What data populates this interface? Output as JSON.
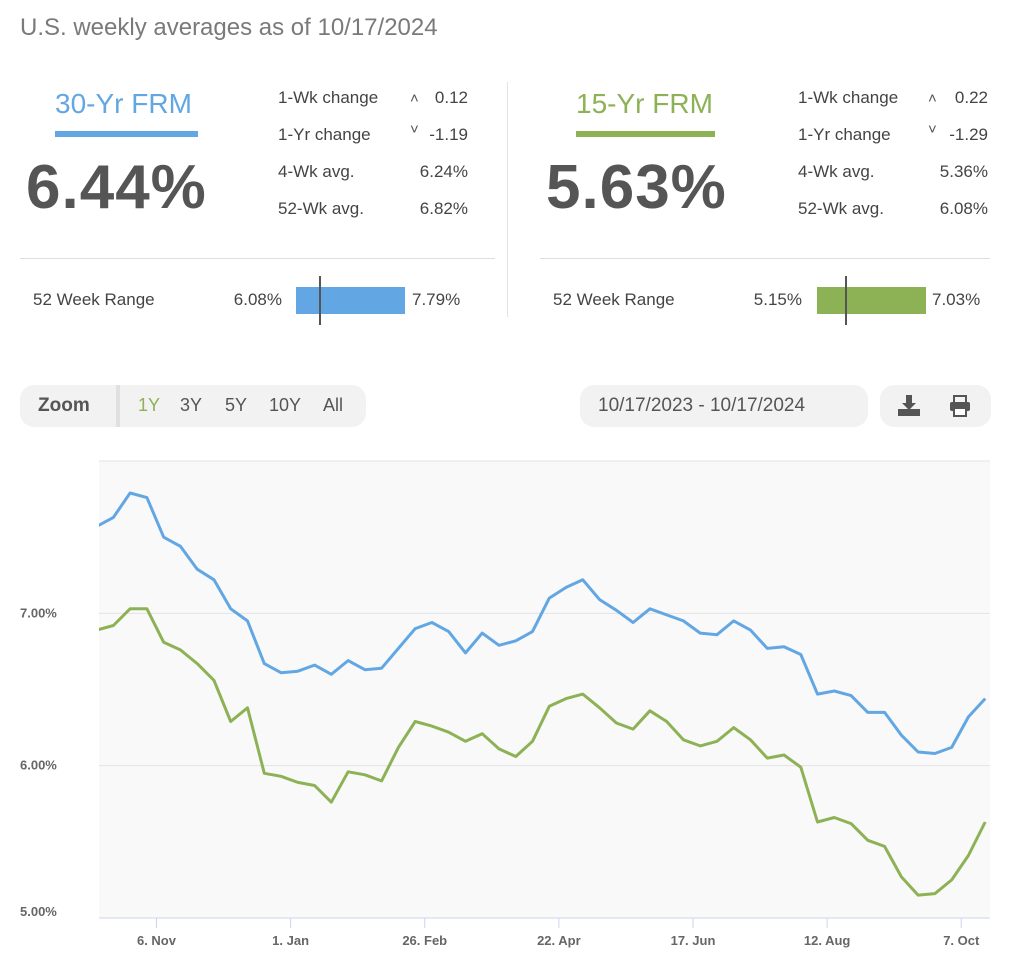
{
  "header": {
    "title": "U.S. weekly averages as of 10/17/2024"
  },
  "colors": {
    "frm30": "#62a7e3",
    "frm15": "#8db255"
  },
  "products": [
    {
      "name": "30-Yr FRM",
      "rate": "6.44%",
      "stats": [
        {
          "label": "1-Wk change",
          "value": "0.12",
          "dir": "up"
        },
        {
          "label": "1-Yr change",
          "value": "-1.19",
          "dir": "down"
        },
        {
          "label": "4-Wk avg.",
          "value": "6.24%"
        },
        {
          "label": "52-Wk avg.",
          "value": "6.82%"
        }
      ],
      "range": {
        "label": "52 Week Range",
        "min": "6.08%",
        "max": "7.79%",
        "fraction": 0.21
      }
    },
    {
      "name": "15-Yr FRM",
      "rate": "5.63%",
      "stats": [
        {
          "label": "1-Wk change",
          "value": "0.22",
          "dir": "up"
        },
        {
          "label": "1-Yr change",
          "value": "-1.29",
          "dir": "down"
        },
        {
          "label": "4-Wk avg.",
          "value": "5.36%"
        },
        {
          "label": "52-Wk avg.",
          "value": "6.08%"
        }
      ],
      "range": {
        "label": "52 Week Range",
        "min": "5.15%",
        "max": "7.03%",
        "fraction": 0.26
      }
    }
  ],
  "toolbar": {
    "zoom_label": "Zoom",
    "zoom_options": [
      "1Y",
      "3Y",
      "5Y",
      "10Y",
      "All"
    ],
    "selected": "1Y",
    "date_range": "10/17/2023 - 10/17/2024"
  },
  "chart_data": {
    "type": "line",
    "title": "",
    "xlabel": "",
    "ylabel": "",
    "ylim": [
      5,
      8
    ],
    "xlim": [
      "2023-10-13",
      "2024-10-19"
    ],
    "grid": true,
    "yticks": [
      {
        "value": 5,
        "label": "5.00%"
      },
      {
        "value": 6,
        "label": "6.00%"
      },
      {
        "value": 7,
        "label": "7.00%"
      }
    ],
    "xticks": [
      {
        "date": "2023-11-06",
        "label": "6. Nov"
      },
      {
        "date": "2024-01-01",
        "label": "1. Jan"
      },
      {
        "date": "2024-02-26",
        "label": "26. Feb"
      },
      {
        "date": "2024-04-22",
        "label": "22. Apr"
      },
      {
        "date": "2024-06-17",
        "label": "17. Jun"
      },
      {
        "date": "2024-08-12",
        "label": "12. Aug"
      },
      {
        "date": "2024-10-07",
        "label": "7. Oct"
      }
    ],
    "x_start": "2023-10-12",
    "x_step_days": 7,
    "series": [
      {
        "name": "30-Yr FRM",
        "color": "#62a7e3",
        "values": [
          7.57,
          7.63,
          7.79,
          7.76,
          7.5,
          7.44,
          7.29,
          7.22,
          7.03,
          6.95,
          6.67,
          6.61,
          6.62,
          6.66,
          6.6,
          6.69,
          6.63,
          6.64,
          6.77,
          6.9,
          6.94,
          6.88,
          6.74,
          6.87,
          6.79,
          6.82,
          6.88,
          7.1,
          7.17,
          7.22,
          7.09,
          7.02,
          6.94,
          7.03,
          6.99,
          6.95,
          6.87,
          6.86,
          6.95,
          6.89,
          6.77,
          6.78,
          6.73,
          6.47,
          6.49,
          6.46,
          6.35,
          6.35,
          6.2,
          6.09,
          6.08,
          6.12,
          6.32,
          6.44
        ]
      },
      {
        "name": "15-Yr FRM",
        "color": "#8db255",
        "values": [
          6.89,
          6.92,
          7.03,
          7.03,
          6.81,
          6.76,
          6.67,
          6.56,
          6.29,
          6.38,
          5.95,
          5.93,
          5.89,
          5.87,
          5.76,
          5.96,
          5.94,
          5.9,
          6.12,
          6.29,
          6.26,
          6.22,
          6.16,
          6.21,
          6.11,
          6.06,
          6.16,
          6.39,
          6.44,
          6.47,
          6.38,
          6.28,
          6.24,
          6.36,
          6.29,
          6.17,
          6.13,
          6.16,
          6.25,
          6.17,
          6.05,
          6.07,
          5.99,
          5.63,
          5.66,
          5.62,
          5.51,
          5.47,
          5.27,
          5.15,
          5.16,
          5.25,
          5.41,
          5.63
        ]
      }
    ]
  }
}
